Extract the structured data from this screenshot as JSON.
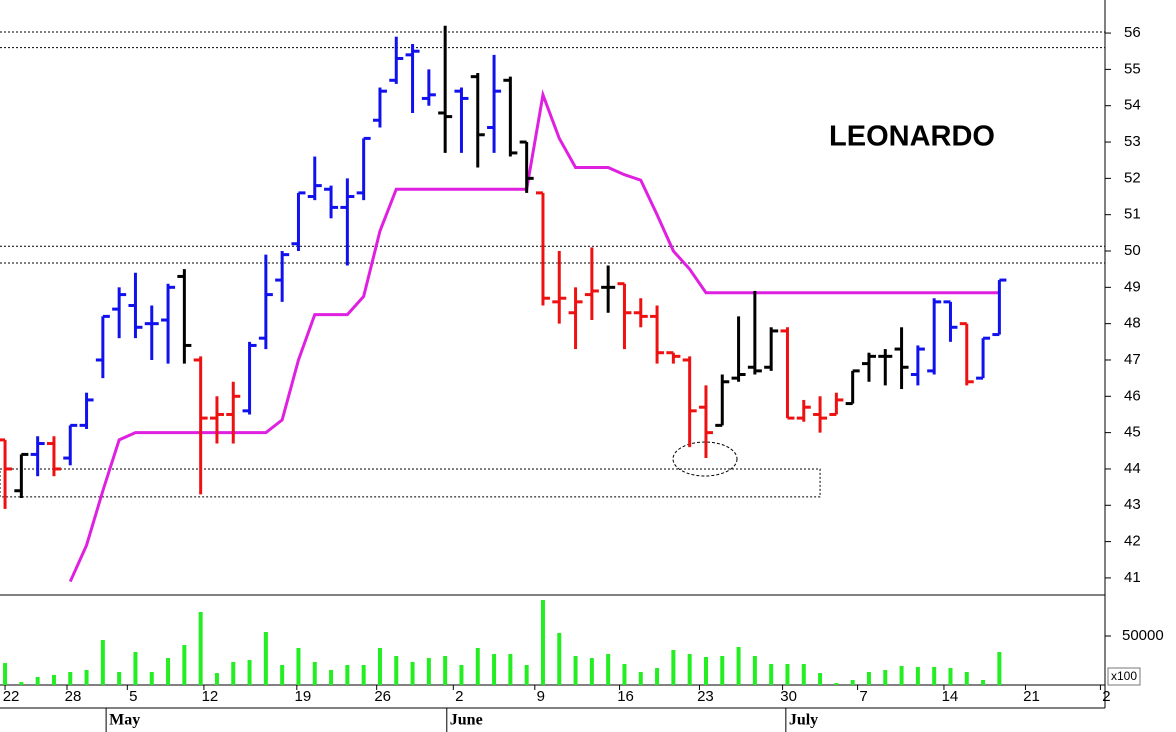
{
  "chart_data": {
    "type": "ohlc",
    "title": "LEONARDO",
    "x": [
      0,
      1,
      2,
      3,
      4,
      5,
      6,
      7,
      8,
      9,
      10,
      11,
      12,
      13,
      14,
      15,
      16,
      17,
      18,
      19,
      20,
      21,
      22,
      23,
      24,
      25,
      26,
      27,
      28,
      29,
      30,
      31,
      32,
      33,
      34,
      35,
      36,
      37,
      38,
      39,
      40,
      41,
      42,
      43,
      44,
      45,
      46,
      47,
      48,
      49,
      50,
      51,
      52,
      53,
      54,
      55,
      56,
      57,
      58,
      59,
      60,
      61
    ],
    "open": [
      44.8,
      43.4,
      44.4,
      44.7,
      44.3,
      45.2,
      47.0,
      48.4,
      48.5,
      48.0,
      48.1,
      49.3,
      47.0,
      45.4,
      45.5,
      45.6,
      47.6,
      49.2,
      50.2,
      51.5,
      51.7,
      51.2,
      51.6,
      53.6,
      54.7,
      55.4,
      54.2,
      53.8,
      54.4,
      54.8,
      53.4,
      54.7,
      53.0,
      51.6,
      48.6,
      48.3,
      48.8,
      49.0,
      49.1,
      48.3,
      48.2,
      47.2,
      47.0,
      45.7,
      45.2,
      46.5,
      46.8,
      46.8,
      47.8,
      45.4,
      45.5,
      45.5,
      45.8,
      46.9,
      47.1,
      47.3,
      46.6,
      46.7,
      48.6,
      48.0,
      46.5,
      47.7
    ],
    "high": [
      44.8,
      44.4,
      44.9,
      44.9,
      45.2,
      46.1,
      48.2,
      49.0,
      49.4,
      48.5,
      49.1,
      49.5,
      47.1,
      46.0,
      46.4,
      47.5,
      49.9,
      50.0,
      51.6,
      52.6,
      51.8,
      52.0,
      53.1,
      54.5,
      55.9,
      55.7,
      55.0,
      56.2,
      54.5,
      54.9,
      55.4,
      54.8,
      53.0,
      51.6,
      50.0,
      49.0,
      50.1,
      49.6,
      49.1,
      48.7,
      48.5,
      47.2,
      47.1,
      46.3,
      46.6,
      48.2,
      48.9,
      47.9,
      47.9,
      45.9,
      46.0,
      46.1,
      46.7,
      47.2,
      47.3,
      47.9,
      47.4,
      48.7,
      48.6,
      48.0,
      47.6,
      49.2
    ],
    "low": [
      42.9,
      43.2,
      43.8,
      43.8,
      44.1,
      45.1,
      46.5,
      47.6,
      47.6,
      47.0,
      46.9,
      46.9,
      43.3,
      44.7,
      44.7,
      45.5,
      47.3,
      48.6,
      50.0,
      51.4,
      50.9,
      49.6,
      51.4,
      53.4,
      54.6,
      53.8,
      54.0,
      52.7,
      52.7,
      52.3,
      52.7,
      52.6,
      51.6,
      48.5,
      48.0,
      47.3,
      48.1,
      48.3,
      47.3,
      47.9,
      46.9,
      46.9,
      44.6,
      44.3,
      45.2,
      46.4,
      46.6,
      46.7,
      45.4,
      45.3,
      45.0,
      45.5,
      45.8,
      46.4,
      46.3,
      46.2,
      46.3,
      46.6,
      47.5,
      46.3,
      46.5,
      47.7
    ],
    "close": [
      44.0,
      44.4,
      44.7,
      44.0,
      45.2,
      45.9,
      48.2,
      48.8,
      47.9,
      48.0,
      49.0,
      47.4,
      45.4,
      45.5,
      46.0,
      47.4,
      48.8,
      49.9,
      51.6,
      51.8,
      51.2,
      51.5,
      53.1,
      54.4,
      55.3,
      55.5,
      54.3,
      53.7,
      54.2,
      53.2,
      54.4,
      52.7,
      52.0,
      48.7,
      48.7,
      48.6,
      48.9,
      49.0,
      48.3,
      48.2,
      47.2,
      47.1,
      45.6,
      45.0,
      46.4,
      46.6,
      46.7,
      47.8,
      45.4,
      45.7,
      45.4,
      45.9,
      46.7,
      47.1,
      47.1,
      46.8,
      47.3,
      48.6,
      47.9,
      46.4,
      47.6,
      49.2
    ],
    "colors": [
      "#ee1111",
      "#000000",
      "#1111ee",
      "#ee1111",
      "#1111ee",
      "#1111ee",
      "#1111ee",
      "#1111ee",
      "#1111ee",
      "#1111ee",
      "#1111ee",
      "#000000",
      "#ee1111",
      "#ee1111",
      "#ee1111",
      "#1111ee",
      "#1111ee",
      "#1111ee",
      "#1111ee",
      "#1111ee",
      "#1111ee",
      "#1111ee",
      "#1111ee",
      "#1111ee",
      "#1111ee",
      "#1111ee",
      "#1111ee",
      "#000000",
      "#1111ee",
      "#000000",
      "#1111ee",
      "#000000",
      "#000000",
      "#ee1111",
      "#ee1111",
      "#ee1111",
      "#ee1111",
      "#000000",
      "#ee1111",
      "#ee1111",
      "#ee1111",
      "#ee1111",
      "#ee1111",
      "#ee1111",
      "#000000",
      "#000000",
      "#000000",
      "#000000",
      "#ee1111",
      "#ee1111",
      "#ee1111",
      "#ee1111",
      "#000000",
      "#000000",
      "#000000",
      "#000000",
      "#1111ee",
      "#1111ee",
      "#1111ee",
      "#ee1111",
      "#1111ee",
      "#1111ee"
    ],
    "stop_line": {
      "color": "#e020e0",
      "values": [
        null,
        null,
        null,
        null,
        40.9,
        41.9,
        43.4,
        44.8,
        45.0,
        45.0,
        45.0,
        45.0,
        45.0,
        45.0,
        45.0,
        45.0,
        45.0,
        45.35,
        47.0,
        48.25,
        48.25,
        48.25,
        48.75,
        50.55,
        51.7,
        51.7,
        51.7,
        51.7,
        51.7,
        51.7,
        51.7,
        51.7,
        51.7,
        54.3,
        53.1,
        52.3,
        52.3,
        52.3,
        52.1,
        51.95,
        51.0,
        50.0,
        49.5,
        48.85,
        48.85,
        48.85,
        48.85,
        48.85,
        48.85,
        48.85,
        48.85,
        48.85,
        48.85,
        48.85,
        48.85,
        48.85,
        48.85,
        48.85,
        48.85,
        48.85,
        48.85,
        48.85
      ]
    },
    "h_lines": [
      56.03,
      55.6,
      50.13,
      49.67
    ],
    "zone": {
      "x": [
        -0.31,
        50
      ],
      "y": [
        43.23,
        44.0
      ]
    },
    "xlim": [
      -0.31,
      67.48
    ],
    "xticks": [
      {
        "value": 0,
        "label": "22"
      },
      {
        "value": 3.8,
        "label": "28"
      },
      {
        "value": 7.5,
        "label": "5"
      },
      {
        "value": 12.2,
        "label": "12"
      },
      {
        "value": 17.9,
        "label": "19"
      },
      {
        "value": 22.8,
        "label": "26"
      },
      {
        "value": 27.5,
        "label": "2"
      },
      {
        "value": 32.5,
        "label": "9"
      },
      {
        "value": 37.7,
        "label": "16"
      },
      {
        "value": 42.6,
        "label": "23"
      },
      {
        "value": 47.7,
        "label": "30"
      },
      {
        "value": 52.3,
        "label": "7"
      },
      {
        "value": 57.6,
        "label": "14"
      },
      {
        "value": 62.6,
        "label": "21"
      },
      {
        "value": 67.2,
        "label": "2"
      }
    ],
    "months": [
      {
        "value": 6.2,
        "label": "May"
      },
      {
        "value": 27.1,
        "label": "June"
      },
      {
        "value": 47.9,
        "label": "July"
      }
    ],
    "ylim": [
      40.53,
      56.91
    ],
    "yticks": [
      41,
      42,
      43,
      44,
      45,
      46,
      47,
      48,
      49,
      50,
      51,
      52,
      53,
      54,
      55,
      56
    ],
    "volume": {
      "color": "#22ee22",
      "unit_label": "x100",
      "ylim": [
        0,
        89800
      ],
      "yticks": [
        50000
      ],
      "values": [
        22400,
        3000,
        8200,
        10200,
        13300,
        15300,
        45900,
        13300,
        33700,
        13300,
        27500,
        40800,
        74500,
        12200,
        23500,
        25500,
        54100,
        20400,
        37800,
        23500,
        15300,
        20400,
        20400,
        37800,
        29600,
        23500,
        27500,
        29600,
        20400,
        37800,
        31600,
        31600,
        20400,
        86700,
        53100,
        29600,
        27500,
        31600,
        21400,
        13300,
        17300,
        35700,
        31600,
        28600,
        29600,
        38800,
        29600,
        21400,
        21400,
        21400,
        12200,
        2000,
        5100,
        13300,
        15300,
        19400,
        18400,
        18400,
        17300,
        13300,
        5100,
        33700
      ]
    }
  }
}
